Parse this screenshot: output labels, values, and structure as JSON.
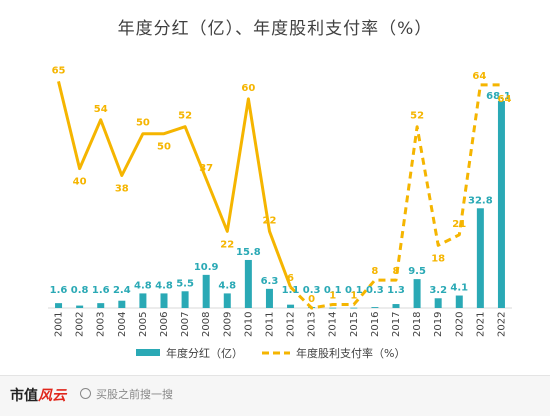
{
  "chart_data": {
    "type": "bar+line",
    "title": "年度分红（亿）、年度股利支付率（%）",
    "categories": [
      "2001",
      "2002",
      "2003",
      "2004",
      "2005",
      "2006",
      "2007",
      "2008",
      "2009",
      "2010",
      "2011",
      "2012",
      "2013",
      "2014",
      "2015",
      "2016",
      "2017",
      "2018",
      "2019",
      "2020",
      "2021",
      "2022"
    ],
    "series": [
      {
        "name": "年度分红（亿）",
        "type": "bar",
        "color": "#2aa9b5",
        "values": [
          1.6,
          0.8,
          1.6,
          2.4,
          4.8,
          4.8,
          5.5,
          10.9,
          4.8,
          15.8,
          6.3,
          1.1,
          0.3,
          0.1,
          0.1,
          0.3,
          1.3,
          9.5,
          3.2,
          4.1,
          32.8,
          68.1
        ],
        "labels": [
          "1.6",
          "0.8",
          "1.6",
          "2.4",
          "4.8",
          "4.8",
          "5.5",
          "10.9",
          "4.8",
          "15.8",
          "6.3",
          "1.1",
          "0.3",
          "0.1",
          "0.1",
          "0.3",
          "1.3",
          "9.5",
          "3.2",
          "4.1",
          "32.8",
          "68.1"
        ]
      },
      {
        "name": "年度股利支付率（%）",
        "type": "line",
        "color": "#f5b500",
        "values": [
          65,
          40,
          54,
          38,
          50,
          50,
          52,
          37,
          22,
          60,
          22,
          6,
          0,
          1,
          1,
          8,
          8,
          52,
          18,
          21,
          64,
          64
        ],
        "labels": [
          "65",
          "40",
          "54",
          "38",
          "50",
          "50",
          "52",
          "37",
          "22",
          "60",
          "22",
          "6",
          "0",
          "1",
          "1",
          "8",
          "8",
          "52",
          "18",
          "21",
          "64",
          "64"
        ],
        "dashed_from_index": 12
      }
    ],
    "legend": {
      "position": "bottom",
      "items": [
        "年度分红（亿）",
        "年度股利支付率（%）"
      ]
    },
    "grid": false
  },
  "watermark": {
    "logo_text": "市值",
    "logo_accent": "风云",
    "search_text": "买股之前搜一搜"
  }
}
